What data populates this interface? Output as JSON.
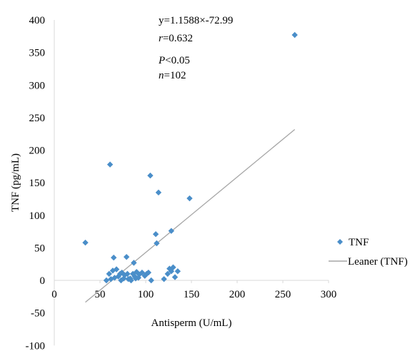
{
  "chart_data": {
    "type": "scatter",
    "xlabel": "Antisperm (U/mL)",
    "ylabel": "TNF (pg/mL)",
    "xlim": [
      0,
      300
    ],
    "ylim": [
      -100,
      400
    ],
    "x_ticks": [
      0,
      50,
      100,
      150,
      200,
      250,
      300
    ],
    "y_ticks": [
      -100,
      -50,
      0,
      50,
      100,
      150,
      200,
      250,
      300,
      350,
      400
    ],
    "grid": false,
    "legend_position": "right",
    "colors": {
      "points": "#4a8ec9",
      "trendline": "#a6a6a6",
      "axis": "#d9d9d9"
    },
    "annotations": {
      "equation": "y=1.1588×-72.99",
      "r_label": "r",
      "r_value": "=0.632",
      "p_label": "P",
      "p_value": "<0.05",
      "n_label": "n",
      "n_value": "=102"
    },
    "series": [
      {
        "name": "TNF",
        "type": "scatter",
        "points": [
          [
            34,
            58
          ],
          [
            61,
            178
          ],
          [
            105,
            161
          ],
          [
            114,
            135
          ],
          [
            148,
            126
          ],
          [
            128,
            76
          ],
          [
            111,
            71
          ],
          [
            112,
            57
          ],
          [
            65,
            35
          ],
          [
            79,
            36
          ],
          [
            87,
            27
          ],
          [
            68,
            17
          ],
          [
            64,
            15
          ],
          [
            60,
            10
          ],
          [
            70,
            6
          ],
          [
            66,
            4
          ],
          [
            62,
            2
          ],
          [
            57,
            0
          ],
          [
            72,
            10
          ],
          [
            74,
            12
          ],
          [
            77,
            8
          ],
          [
            81,
            2
          ],
          [
            84,
            0
          ],
          [
            88,
            6
          ],
          [
            86,
            10
          ],
          [
            90,
            13
          ],
          [
            93,
            9
          ],
          [
            96,
            12
          ],
          [
            99,
            7
          ],
          [
            101,
            10
          ],
          [
            103,
            12
          ],
          [
            92,
            4
          ],
          [
            80,
            10
          ],
          [
            76,
            3
          ],
          [
            73,
            0
          ],
          [
            83,
            3
          ],
          [
            89,
            3
          ],
          [
            106,
            0
          ],
          [
            120,
            2
          ],
          [
            124,
            10
          ],
          [
            126,
            18
          ],
          [
            130,
            20
          ],
          [
            135,
            14
          ],
          [
            132,
            5
          ],
          [
            128,
            14
          ],
          [
            263,
            377
          ]
        ]
      },
      {
        "name": "Leaner (TNF)",
        "type": "line",
        "x": [
          34,
          263
        ],
        "y": [
          -33.59,
          231.77
        ]
      }
    ]
  }
}
